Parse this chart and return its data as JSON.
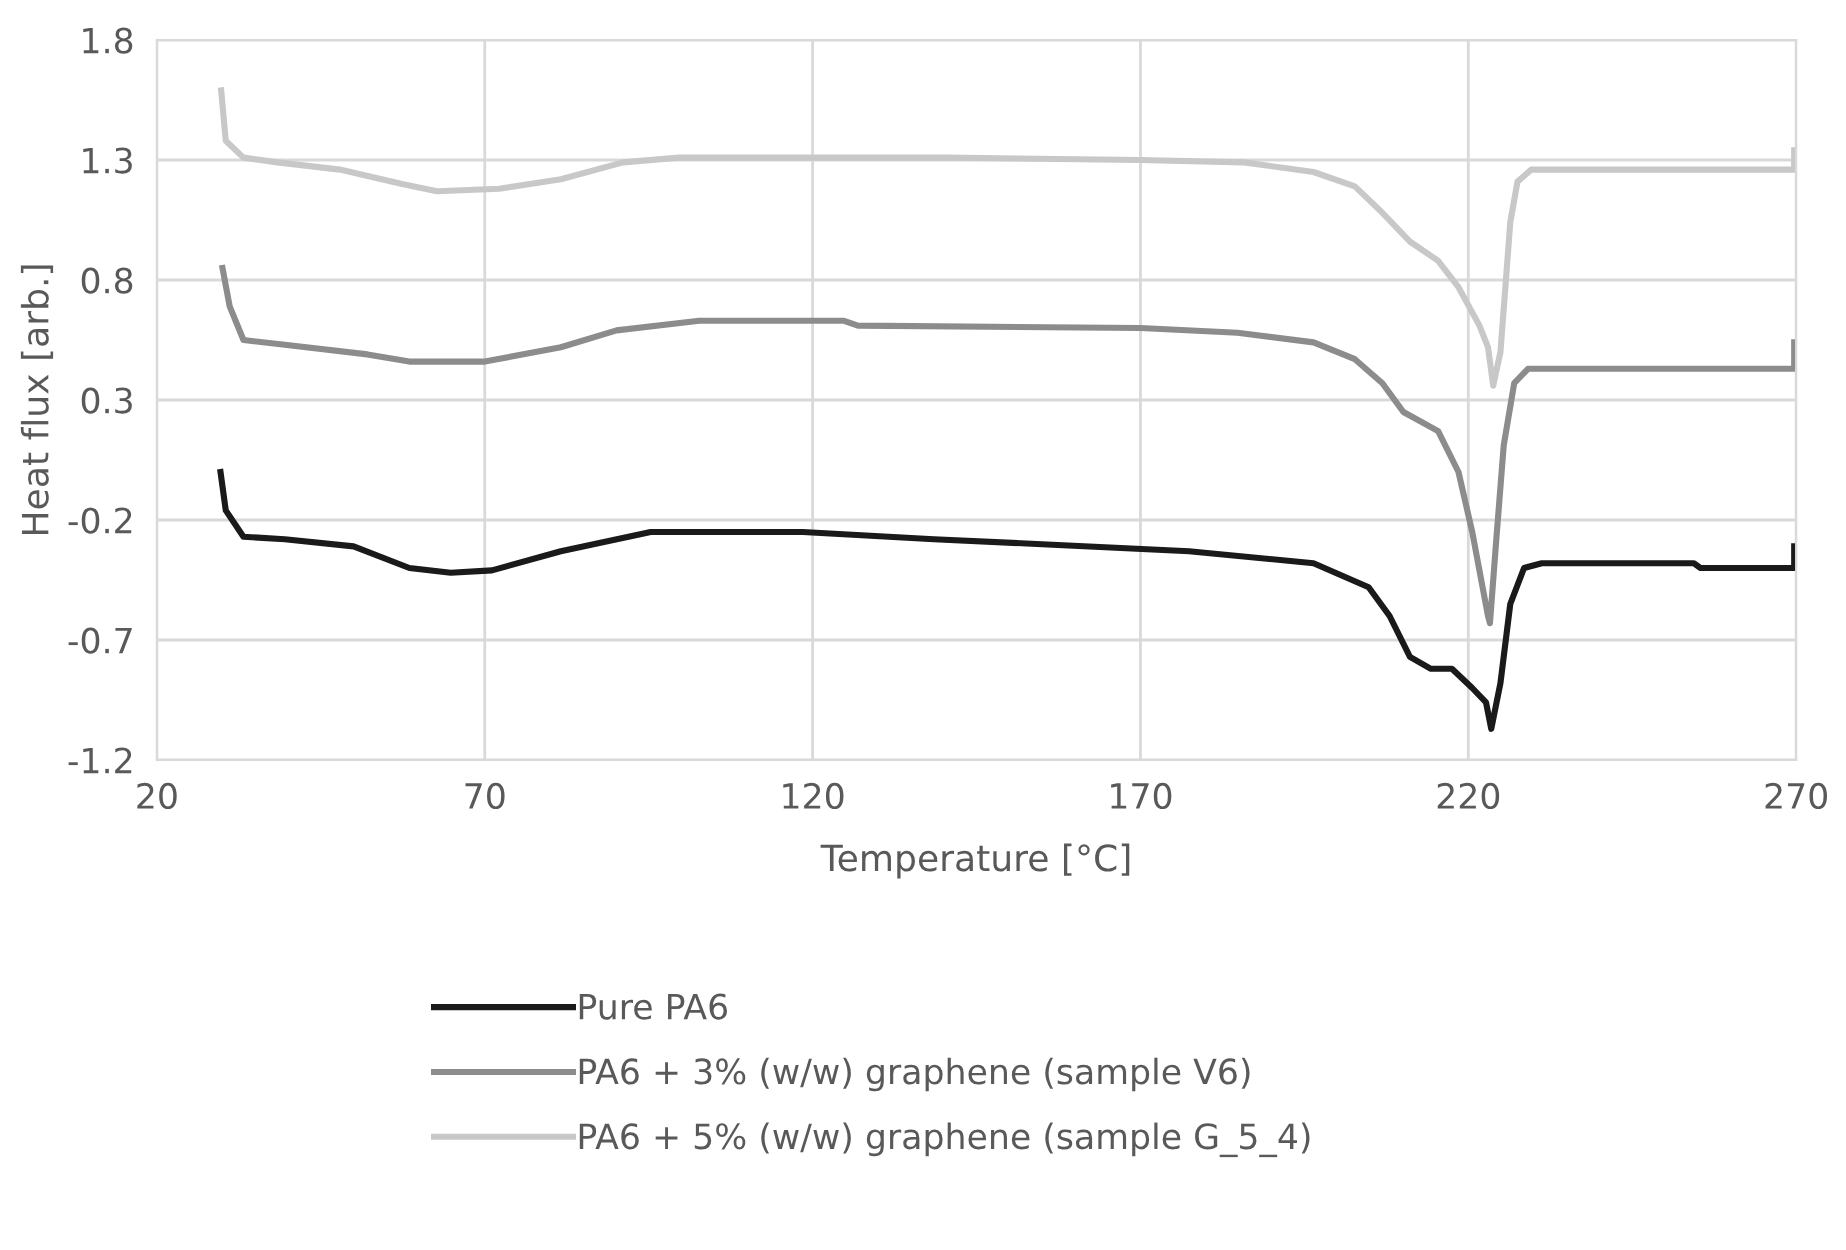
{
  "chart_data": {
    "type": "line",
    "xlabel": "Temperature [°C]",
    "ylabel": "Heat flux [arb.]",
    "xlim": [
      20,
      270
    ],
    "xticks": [
      20,
      70,
      120,
      170,
      220,
      270
    ],
    "ylim": [
      -1.2,
      1.8
    ],
    "yticks": [
      -1.2,
      -0.7,
      -0.2,
      0.3,
      0.8,
      1.3,
      1.8
    ],
    "grid": true,
    "legend": "bottom",
    "marker": "none",
    "line_style": "solid",
    "series": [
      {
        "name": "Pure PA6",
        "color": "#1a1a1a",
        "x": [
          29.7,
          30.5,
          33.2,
          39.5,
          50,
          58.5,
          64.8,
          71.1,
          81.6,
          95.3,
          118.5,
          138.5,
          154.2,
          177.4,
          196.4,
          204.8,
          208,
          211.1,
          214.3,
          217.5,
          220.6,
          222.7,
          223.5,
          224.9,
          226.4,
          228.5,
          231.2,
          254.4,
          255.4,
          269.7,
          269.7
        ],
        "values": [
          0.0,
          -0.16,
          -0.27,
          -0.28,
          -0.31,
          -0.4,
          -0.42,
          -0.41,
          -0.33,
          -0.25,
          -0.25,
          -0.28,
          -0.3,
          -0.33,
          -0.38,
          -0.48,
          -0.6,
          -0.77,
          -0.82,
          -0.82,
          -0.9,
          -0.96,
          -1.07,
          -0.88,
          -0.55,
          -0.4,
          -0.38,
          -0.38,
          -0.4,
          -0.4,
          -0.31
        ]
      },
      {
        "name": "PA6 + 3% (w/w) graphene (sample V6)",
        "color": "#8c8c8c",
        "x": [
          30,
          31.1,
          33.2,
          39.5,
          52.1,
          58.5,
          70,
          81.6,
          90.1,
          102.7,
          124.8,
          126.9,
          170,
          184.8,
          196.4,
          202.7,
          206.9,
          210.1,
          215.4,
          218.5,
          220.6,
          223,
          223.3,
          224.3,
          225.4,
          227,
          229.1,
          269.7,
          269.7
        ],
        "values": [
          0.85,
          0.69,
          0.55,
          0.53,
          0.49,
          0.46,
          0.46,
          0.52,
          0.59,
          0.63,
          0.63,
          0.61,
          0.6,
          0.58,
          0.54,
          0.47,
          0.37,
          0.25,
          0.17,
          0.0,
          -0.25,
          -0.6,
          -0.63,
          -0.27,
          0.11,
          0.37,
          0.43,
          0.43,
          0.54
        ]
      },
      {
        "name": "PA6 + 5% (w/w) graphene (sample G_5_4)",
        "color": "#c8c8c8",
        "x": [
          29.8,
          30.5,
          33.2,
          38.4,
          47.9,
          57.4,
          62.7,
          72.2,
          81.6,
          91.1,
          99.6,
          140.6,
          170,
          185.8,
          196.4,
          202.7,
          206.9,
          211.1,
          215.4,
          218.5,
          221.7,
          223,
          223.8,
          224.9,
          226.4,
          227.5,
          229.6,
          269.7,
          269.7
        ],
        "values": [
          1.59,
          1.38,
          1.31,
          1.29,
          1.26,
          1.2,
          1.17,
          1.18,
          1.22,
          1.29,
          1.31,
          1.31,
          1.3,
          1.29,
          1.25,
          1.19,
          1.08,
          0.96,
          0.88,
          0.77,
          0.61,
          0.52,
          0.36,
          0.5,
          1.04,
          1.21,
          1.26,
          1.26,
          1.34
        ]
      }
    ]
  }
}
